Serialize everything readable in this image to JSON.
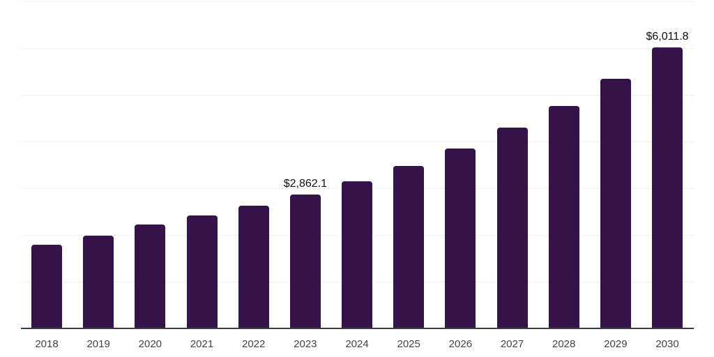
{
  "chart_data": {
    "type": "bar",
    "title": "",
    "xlabel": "",
    "ylabel": "",
    "categories": [
      "2018",
      "2019",
      "2020",
      "2021",
      "2022",
      "2023",
      "2024",
      "2025",
      "2026",
      "2027",
      "2028",
      "2029",
      "2030"
    ],
    "values": [
      1790,
      1985,
      2225,
      2420,
      2630,
      2862.1,
      3150,
      3480,
      3850,
      4300,
      4760,
      5340,
      6011.8
    ],
    "value_labels": [
      {
        "category": "2023",
        "text": "$2,862.1"
      },
      {
        "category": "2030",
        "text": "$6,011.8"
      }
    ],
    "ylim": [
      0,
      7000
    ],
    "gridline_step": 1000,
    "grid": "horizontal-only",
    "legend": "none",
    "y_axis_tick_labels_visible": false,
    "colors": {
      "bar": "#34124a",
      "axis_line": "#3d3d3d",
      "gridline": "#f0f0f0",
      "value_label": "#111111",
      "tick_label": "#444444",
      "background": "#ffffff"
    }
  }
}
